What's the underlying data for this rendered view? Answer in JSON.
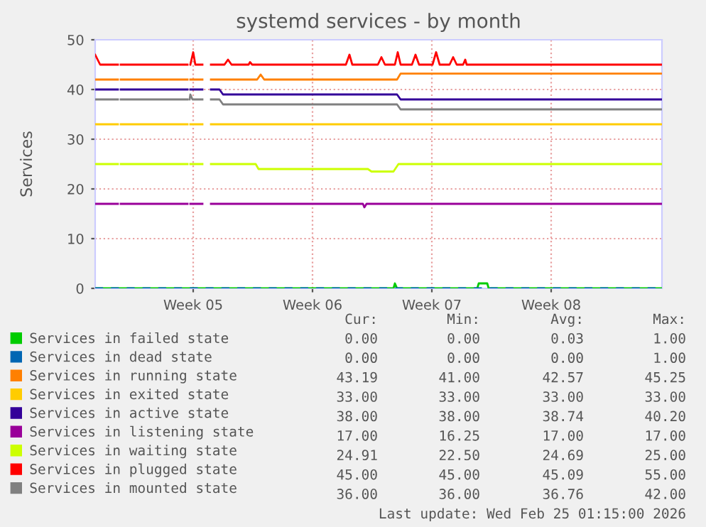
{
  "chart_data": {
    "type": "line",
    "title": "systemd services - by month",
    "ylabel": "Services",
    "xlim": [
      "2026-01-22T18:00",
      "2026-02-25T00:00"
    ],
    "xticks": [
      {
        "value": "2026-01-28T12:00",
        "label": "Week 05"
      },
      {
        "value": "2026-02-04T12:00",
        "label": "Week 06"
      },
      {
        "value": "2026-02-11T12:00",
        "label": "Week 07"
      },
      {
        "value": "2026-02-18T12:00",
        "label": "Week 08"
      }
    ],
    "ylim": [
      0,
      50
    ],
    "yticks": [
      0,
      10,
      20,
      30,
      40,
      50
    ],
    "grid": true,
    "legend": "bottom",
    "marker": "none",
    "line_style": "solid",
    "series": [
      {
        "name": "Services in failed state",
        "color": "#00cc00",
        "x": [
          "2026-01-22T18:00",
          "2026-02-09T06:00",
          "2026-02-09T08:00",
          "2026-02-09T11:00",
          "2026-02-14T04:00",
          "2026-02-14T06:00",
          "2026-02-14T18:00",
          "2026-02-14T20:00",
          "2026-02-25T00:00"
        ],
        "values": [
          0,
          0,
          1,
          0,
          0,
          1,
          1,
          0,
          0
        ]
      },
      {
        "name": "Services in dead state",
        "color": "#0066b3",
        "line_style": "dashed",
        "x": [
          "2026-01-22T18:00",
          "2026-02-25T00:00"
        ],
        "values": [
          0,
          0
        ]
      },
      {
        "name": "Services in running state",
        "color": "#ff8000",
        "x": [
          "2026-01-22T18:00",
          "2026-01-24T02:00",
          "2026-01-24T04:00",
          "2026-01-24T06:00",
          "2026-01-28T04:00",
          "2026-01-28T06:00",
          "2026-01-28T08:00",
          "2026-01-29T01:00",
          "2026-01-29T07:00",
          "2026-01-29T13:00",
          "2026-02-01T06:00",
          "2026-02-01T11:00",
          "2026-02-01T16:00",
          "2026-02-09T11:00",
          "2026-02-09T16:00",
          "2026-02-25T00:00"
        ],
        "values": [
          42,
          42,
          null,
          42,
          42,
          null,
          42,
          42,
          null,
          42,
          42,
          43,
          42,
          42,
          43.2,
          43.2
        ]
      },
      {
        "name": "Services in exited state",
        "color": "#ffcc00",
        "x": [
          "2026-01-22T18:00",
          "2026-01-24T02:00",
          "2026-01-24T04:00",
          "2026-01-24T06:00",
          "2026-01-28T04:00",
          "2026-01-28T06:00",
          "2026-01-28T08:00",
          "2026-01-29T01:00",
          "2026-01-29T07:00",
          "2026-01-29T13:00",
          "2026-02-25T00:00"
        ],
        "values": [
          33,
          33,
          null,
          33,
          33,
          null,
          33,
          33,
          null,
          33,
          33
        ]
      },
      {
        "name": "Services in active state",
        "color": "#330099",
        "x": [
          "2026-01-22T18:00",
          "2026-01-24T02:00",
          "2026-01-24T04:00",
          "2026-01-24T06:00",
          "2026-01-28T04:00",
          "2026-01-28T06:00",
          "2026-01-28T08:00",
          "2026-01-29T01:00",
          "2026-01-29T07:00",
          "2026-01-29T13:00",
          "2026-01-30T01:00",
          "2026-01-30T06:00",
          "2026-02-09T11:00",
          "2026-02-09T16:00",
          "2026-02-25T00:00"
        ],
        "values": [
          40,
          40,
          null,
          40,
          40,
          null,
          40,
          40,
          null,
          40,
          40,
          39,
          39,
          38,
          38
        ]
      },
      {
        "name": "Services in listening state",
        "color": "#990099",
        "x": [
          "2026-01-22T18:00",
          "2026-01-24T02:00",
          "2026-01-24T04:00",
          "2026-01-24T06:00",
          "2026-01-28T04:00",
          "2026-01-28T06:00",
          "2026-01-28T08:00",
          "2026-01-29T01:00",
          "2026-01-29T07:00",
          "2026-01-29T13:00",
          "2026-02-07T11:00",
          "2026-02-07T13:00",
          "2026-02-07T16:00",
          "2026-02-25T00:00"
        ],
        "values": [
          17,
          17,
          null,
          17,
          17,
          null,
          17,
          17,
          null,
          17,
          17,
          16.3,
          17,
          17
        ]
      },
      {
        "name": "Services in waiting state",
        "color": "#ccff00",
        "x": [
          "2026-01-22T18:00",
          "2026-01-24T02:00",
          "2026-01-24T04:00",
          "2026-01-24T06:00",
          "2026-01-28T04:00",
          "2026-01-28T06:00",
          "2026-01-28T08:00",
          "2026-01-29T01:00",
          "2026-01-29T07:00",
          "2026-01-29T13:00",
          "2026-02-01T04:00",
          "2026-02-01T08:00",
          "2026-02-07T18:00",
          "2026-02-07T23:00",
          "2026-02-09T06:00",
          "2026-02-09T13:00",
          "2026-02-25T00:00"
        ],
        "values": [
          25,
          25,
          null,
          25,
          25,
          null,
          25,
          25,
          null,
          25,
          25,
          24,
          24,
          23.5,
          23.5,
          25,
          25
        ]
      },
      {
        "name": "Services in plugged state",
        "color": "#ff0000",
        "x": [
          "2026-01-22T18:00",
          "2026-01-23T01:00",
          "2026-01-24T02:00",
          "2026-01-24T04:00",
          "2026-01-24T06:00",
          "2026-01-28T04:00",
          "2026-01-28T06:00",
          "2026-01-28T08:00",
          "2026-01-28T12:00",
          "2026-01-28T15:00",
          "2026-01-29T01:00",
          "2026-01-29T07:00",
          "2026-01-29T13:00",
          "2026-01-30T08:00",
          "2026-01-30T13:00",
          "2026-01-30T18:00",
          "2026-01-31T18:00",
          "2026-01-31T20:00",
          "2026-01-31T23:00",
          "2026-02-06T11:00",
          "2026-02-06T16:00",
          "2026-02-06T20:00",
          "2026-02-08T08:00",
          "2026-02-08T13:00",
          "2026-02-08T18:00",
          "2026-02-09T08:00",
          "2026-02-09T12:00",
          "2026-02-09T16:00",
          "2026-02-10T08:00",
          "2026-02-10T13:00",
          "2026-02-10T18:00",
          "2026-02-11T13:00",
          "2026-02-11T18:00",
          "2026-02-11T23:00",
          "2026-02-12T13:00",
          "2026-02-12T18:00",
          "2026-02-12T23:00",
          "2026-02-13T08:00",
          "2026-02-13T11:00",
          "2026-02-13T13:00",
          "2026-02-25T00:00"
        ],
        "values": [
          47,
          45,
          45,
          null,
          45,
          45,
          null,
          45,
          47.5,
          45,
          45,
          null,
          45,
          45,
          46,
          45,
          45,
          45.5,
          45,
          45,
          47,
          45,
          45,
          46.5,
          45,
          45,
          47.5,
          45,
          45,
          47,
          45,
          45,
          47.5,
          45,
          45,
          46.5,
          45,
          45,
          46,
          45,
          45
        ]
      },
      {
        "name": "Services in mounted state",
        "color": "#808080",
        "x": [
          "2026-01-22T18:00",
          "2026-01-24T02:00",
          "2026-01-24T04:00",
          "2026-01-24T06:00",
          "2026-01-28T04:00",
          "2026-01-28T06:00",
          "2026-01-28T07:00",
          "2026-01-28T08:00",
          "2026-01-28T11:00",
          "2026-01-29T01:00",
          "2026-01-29T07:00",
          "2026-01-29T13:00",
          "2026-01-30T01:00",
          "2026-01-30T06:00",
          "2026-02-09T11:00",
          "2026-02-09T16:00",
          "2026-02-25T00:00"
        ],
        "values": [
          38,
          38,
          null,
          38,
          38,
          null,
          38,
          39,
          38,
          38,
          null,
          38,
          38,
          37,
          37,
          36,
          36
        ]
      }
    ],
    "annotations": [
      "Cur:",
      "Min:",
      "Avg:",
      "Max:",
      "0.00",
      "0.00",
      "0.03",
      "1.00",
      "0.00",
      "0.00",
      "0.00",
      "1.00",
      "43.19",
      "41.00",
      "42.57",
      "45.25",
      "33.00",
      "33.00",
      "33.00",
      "33.00",
      "38.00",
      "38.00",
      "38.74",
      "40.20",
      "17.00",
      "16.25",
      "17.00",
      "17.00",
      "24.91",
      "22.50",
      "24.69",
      "25.00",
      "45.00",
      "45.00",
      "45.09",
      "55.00",
      "36.00",
      "36.00",
      "36.76",
      "42.00",
      "Last update: Wed Feb 25 01:15:00 2026"
    ]
  }
}
